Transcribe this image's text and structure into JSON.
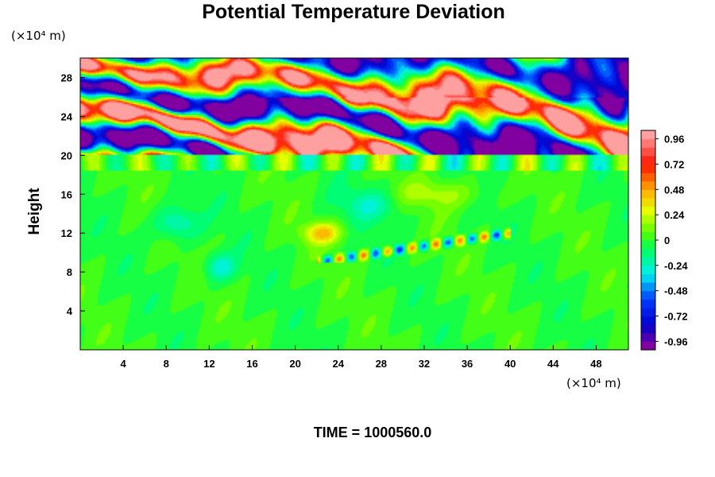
{
  "chart_data": {
    "type": "heatmap",
    "title": "Potential Temperature Deviation",
    "ylabel": "Height",
    "xunit": "(×10⁴ m)",
    "yunit": "(×10⁴ m)",
    "xlim": [
      0,
      51
    ],
    "ylim": [
      0,
      30
    ],
    "x_ticks": [
      4,
      8,
      12,
      16,
      20,
      24,
      28,
      32,
      36,
      40,
      44,
      48
    ],
    "y_ticks": [
      4,
      8,
      12,
      16,
      20,
      24,
      28
    ],
    "colorbar": {
      "range": [
        -1.04,
        1.04
      ],
      "levels": 26,
      "tick_labels": [
        "0.96",
        "0.72",
        "0.48",
        "0.24",
        "0",
        "-0.24",
        "-0.48",
        "-0.72",
        "-0.96"
      ],
      "tick_values": [
        0.96,
        0.72,
        0.48,
        0.24,
        0,
        -0.24,
        -0.48,
        -0.72,
        -0.96
      ]
    },
    "field_summary": {
      "interface_height": 20,
      "upper_layer_amplitude": 1.0,
      "lower_layer_typical": 0.0
    },
    "footer": "TIME = 1000560.0"
  }
}
